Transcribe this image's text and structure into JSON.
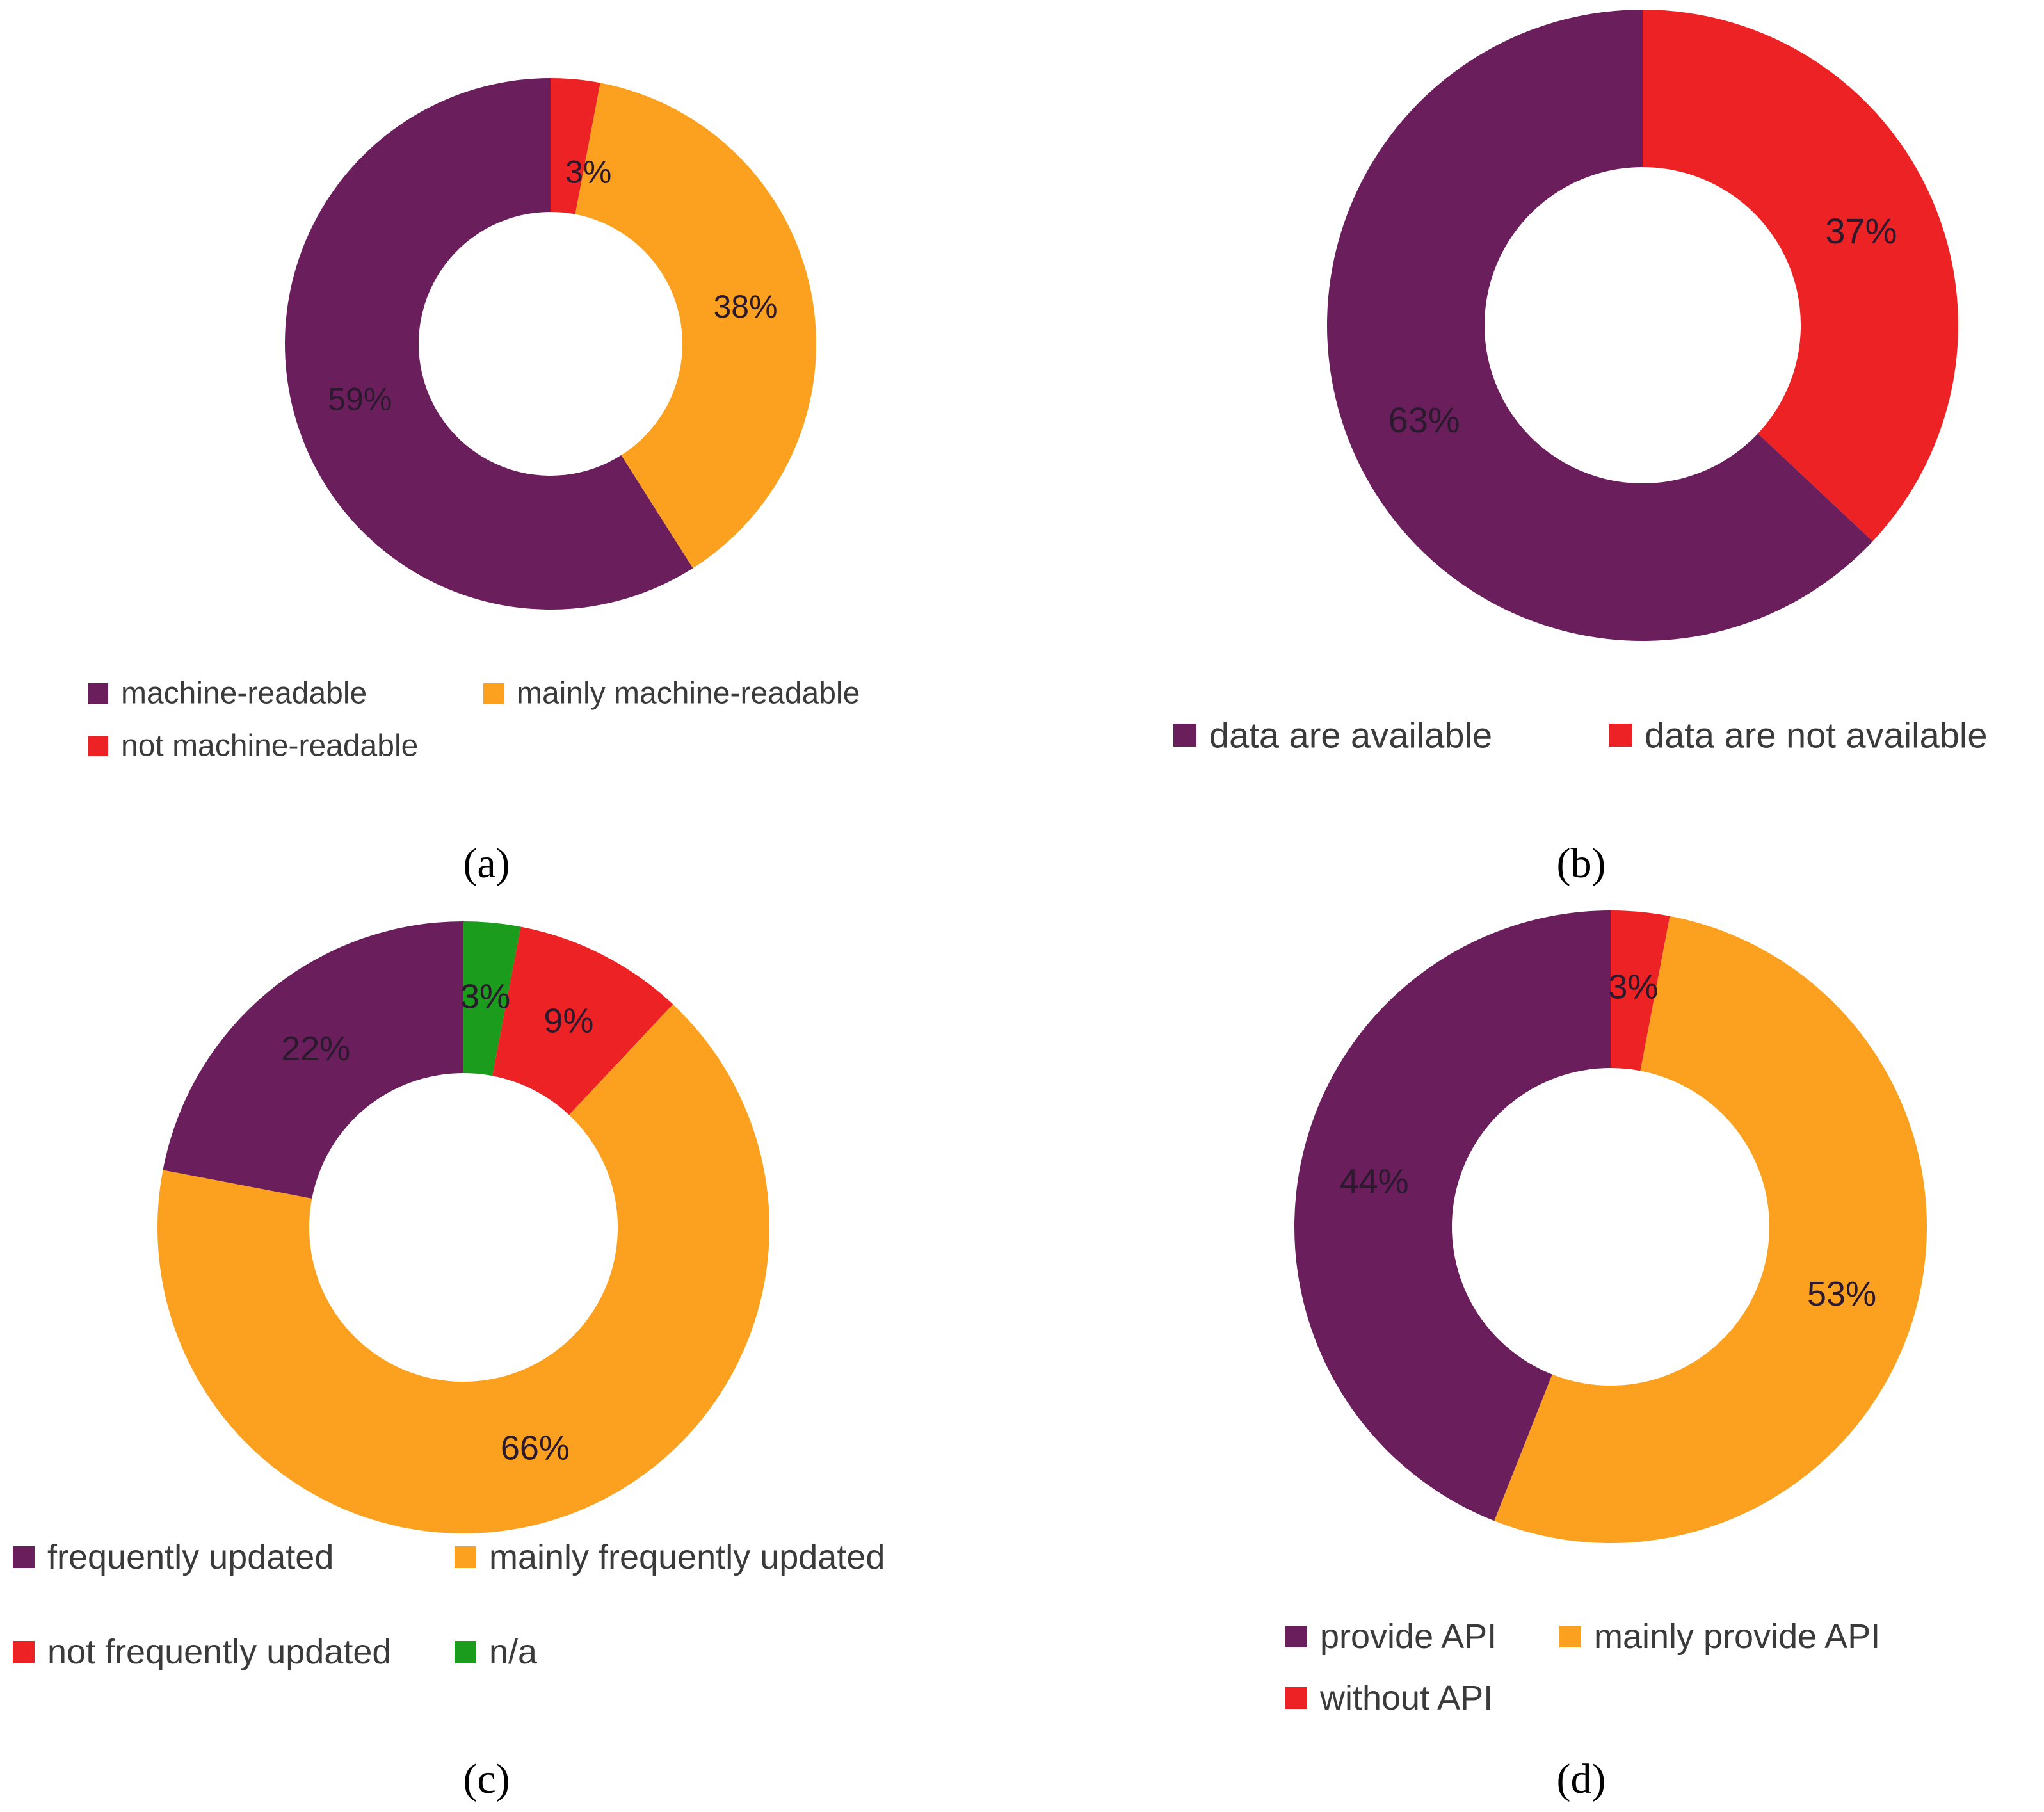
{
  "colors": {
    "purple": "#6a1e5c",
    "orange": "#fba11f",
    "red": "#ec2224",
    "green": "#1c9c1c"
  },
  "chart_data": [
    {
      "type": "pie",
      "subtype": "donut",
      "panel": "(a)",
      "slices": [
        {
          "name": "not machine-readable",
          "value": 3,
          "label": "3%",
          "color": "#ec2224"
        },
        {
          "name": "mainly machine-readable",
          "value": 38,
          "label": "38%",
          "color": "#fba11f"
        },
        {
          "name": "machine-readable",
          "value": 59,
          "label": "59%",
          "color": "#6a1e5c"
        }
      ],
      "legend": [
        {
          "label": "machine-readable",
          "color": "#6a1e5c"
        },
        {
          "label": "mainly machine-readable",
          "color": "#fba11f"
        },
        {
          "label": "not machine-readable",
          "color": "#ec2224"
        }
      ]
    },
    {
      "type": "pie",
      "subtype": "donut",
      "panel": "(b)",
      "slices": [
        {
          "name": "data are not available",
          "value": 37,
          "label": "37%",
          "color": "#ec2224"
        },
        {
          "name": "data are available",
          "value": 63,
          "label": "63%",
          "color": "#6a1e5c"
        }
      ],
      "legend": [
        {
          "label": "data are available",
          "color": "#6a1e5c"
        },
        {
          "label": "data are not available",
          "color": "#ec2224"
        }
      ]
    },
    {
      "type": "pie",
      "subtype": "donut",
      "panel": "(c)",
      "slices": [
        {
          "name": "n/a",
          "value": 3,
          "label": "3%",
          "color": "#1c9c1c"
        },
        {
          "name": "not frequently updated",
          "value": 9,
          "label": "9%",
          "color": "#ec2224"
        },
        {
          "name": "mainly frequently updated",
          "value": 66,
          "label": "66%",
          "color": "#fba11f"
        },
        {
          "name": "frequently updated",
          "value": 22,
          "label": "22%",
          "color": "#6a1e5c"
        }
      ],
      "legend": [
        {
          "label": "frequently updated",
          "color": "#6a1e5c"
        },
        {
          "label": "mainly frequently updated",
          "color": "#fba11f"
        },
        {
          "label": "not frequently updated",
          "color": "#ec2224"
        },
        {
          "label": "n/a",
          "color": "#1c9c1c"
        }
      ]
    },
    {
      "type": "pie",
      "subtype": "donut",
      "panel": "(d)",
      "slices": [
        {
          "name": "without API",
          "value": 3,
          "label": "3%",
          "color": "#ec2224"
        },
        {
          "name": "mainly provide API",
          "value": 53,
          "label": "53%",
          "color": "#fba11f"
        },
        {
          "name": "provide API",
          "value": 44,
          "label": "44%",
          "color": "#6a1e5c"
        }
      ],
      "legend": [
        {
          "label": "provide API",
          "color": "#6a1e5c"
        },
        {
          "label": "mainly provide API",
          "color": "#fba11f"
        },
        {
          "label": "without API",
          "color": "#ec2224"
        }
      ]
    }
  ]
}
